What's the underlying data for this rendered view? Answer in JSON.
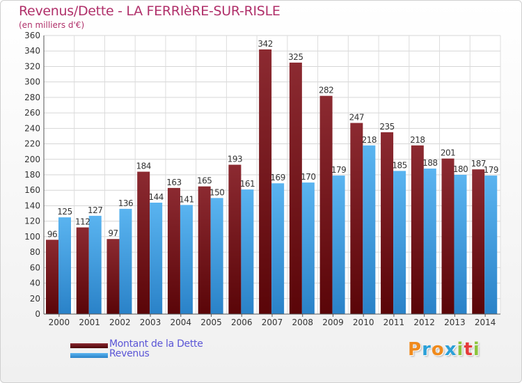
{
  "chart_data": {
    "type": "bar",
    "title": "Revenus/Dette - LA FERRIèRE-SUR-RISLE",
    "subtitle": "(en milliers d'€)",
    "categories": [
      "2000",
      "2001",
      "2002",
      "2003",
      "2004",
      "2005",
      "2006",
      "2007",
      "2008",
      "2009",
      "2010",
      "2011",
      "2012",
      "2013",
      "2014"
    ],
    "series": [
      {
        "name": "Montant de la Dette",
        "color": "#8b1a1f",
        "values": [
          96,
          112,
          97,
          184,
          163,
          165,
          193,
          342,
          325,
          282,
          247,
          235,
          218,
          201,
          187
        ]
      },
      {
        "name": "Revenus",
        "color": "#3d9be0",
        "values": [
          125,
          127,
          136,
          144,
          141,
          150,
          161,
          169,
          170,
          179,
          218,
          185,
          188,
          180,
          179
        ]
      }
    ],
    "yticks": [
      0,
      20,
      40,
      60,
      80,
      100,
      120,
      140,
      160,
      180,
      200,
      220,
      240,
      260,
      280,
      300,
      320,
      340,
      360
    ],
    "ylim": [
      0,
      360
    ],
    "grid": true,
    "legend": "bottom-left"
  },
  "logo": {
    "letters": [
      "P",
      "r",
      "o",
      "x",
      "i",
      "t",
      "i"
    ],
    "colors": [
      "#f08a1c",
      "#2aa0d8",
      "#f08a1c",
      "#2aa0d8",
      "#8cc43c",
      "#e53a3a",
      "#8cc43c"
    ]
  }
}
